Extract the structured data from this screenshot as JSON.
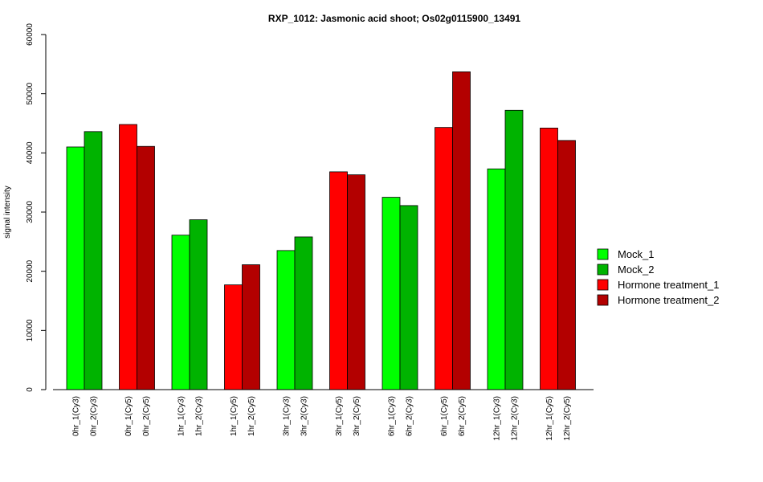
{
  "chart_data": {
    "type": "bar",
    "title": "RXP_1012: Jasmonic acid shoot; Os02g0115900_13491",
    "xlabel": "",
    "ylabel": "signal intensity",
    "ylim": [
      0,
      60000
    ],
    "yticks": [
      0,
      10000,
      20000,
      30000,
      40000,
      50000,
      60000
    ],
    "legend_position": "right",
    "legend": [
      {
        "label": "Mock_1",
        "color": "#00ff00"
      },
      {
        "label": "Mock_2",
        "color": "#00b300"
      },
      {
        "label": "Hormone treatment_1",
        "color": "#ff0000"
      },
      {
        "label": "Hormone treatment_2",
        "color": "#b30000"
      }
    ],
    "groups": [
      {
        "bars": [
          {
            "label": "0hr_1(Cy3)",
            "value": 41000,
            "color": "#00ff00"
          },
          {
            "label": "0hr_2(Cy3)",
            "value": 43600,
            "color": "#00b300"
          }
        ]
      },
      {
        "bars": [
          {
            "label": "0hr_1(Cy5)",
            "value": 44800,
            "color": "#ff0000"
          },
          {
            "label": "0hr_2(Cy5)",
            "value": 41100,
            "color": "#b30000"
          }
        ]
      },
      {
        "bars": [
          {
            "label": "1hr_1(Cy3)",
            "value": 26100,
            "color": "#00ff00"
          },
          {
            "label": "1hr_2(Cy3)",
            "value": 28700,
            "color": "#00b300"
          }
        ]
      },
      {
        "bars": [
          {
            "label": "1hr_1(Cy5)",
            "value": 17700,
            "color": "#ff0000"
          },
          {
            "label": "1hr_2(Cy5)",
            "value": 21100,
            "color": "#b30000"
          }
        ]
      },
      {
        "bars": [
          {
            "label": "3hr_1(Cy3)",
            "value": 23500,
            "color": "#00ff00"
          },
          {
            "label": "3hr_2(Cy3)",
            "value": 25800,
            "color": "#00b300"
          }
        ]
      },
      {
        "bars": [
          {
            "label": "3hr_1(Cy5)",
            "value": 36800,
            "color": "#ff0000"
          },
          {
            "label": "3hr_2(Cy5)",
            "value": 36300,
            "color": "#b30000"
          }
        ]
      },
      {
        "bars": [
          {
            "label": "6hr_1(Cy3)",
            "value": 32500,
            "color": "#00ff00"
          },
          {
            "label": "6hr_2(Cy3)",
            "value": 31100,
            "color": "#00b300"
          }
        ]
      },
      {
        "bars": [
          {
            "label": "6hr_1(Cy5)",
            "value": 44300,
            "color": "#ff0000"
          },
          {
            "label": "6hr_2(Cy5)",
            "value": 53700,
            "color": "#b30000"
          }
        ]
      },
      {
        "bars": [
          {
            "label": "12hr_1(Cy3)",
            "value": 37300,
            "color": "#00ff00"
          },
          {
            "label": "12hr_2(Cy3)",
            "value": 47200,
            "color": "#00b300"
          }
        ]
      },
      {
        "bars": [
          {
            "label": "12hr_1(Cy5)",
            "value": 44200,
            "color": "#ff0000"
          },
          {
            "label": "12hr_2(Cy5)",
            "value": 42100,
            "color": "#b30000"
          }
        ]
      }
    ]
  }
}
